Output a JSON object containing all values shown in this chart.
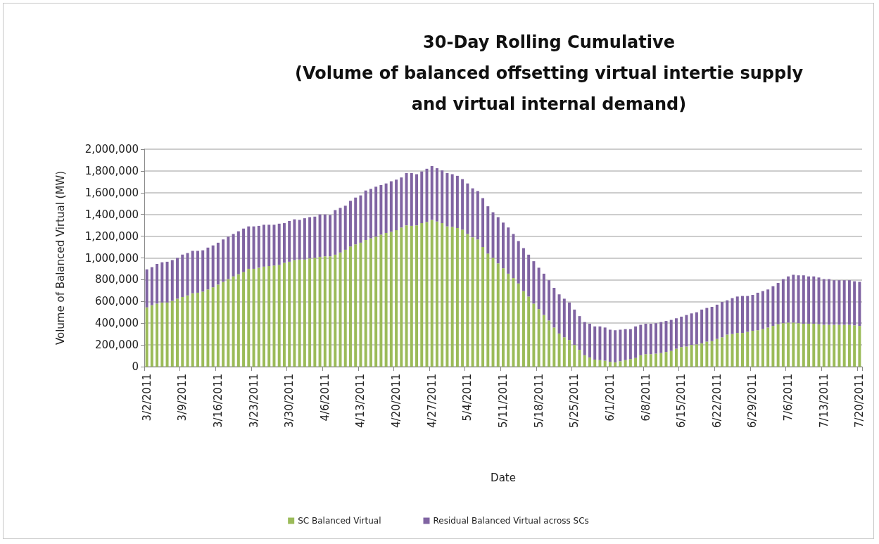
{
  "chart_data": {
    "type": "bar",
    "stacked": true,
    "title": "30-Day Rolling Cumulative\n(Volume of balanced offsetting virtual intertie supply\nand virtual internal demand)",
    "xlabel": "Date",
    "ylabel": "Volume of Balanced Virtual (MW)",
    "categories": [
      "3/2/2011",
      null,
      null,
      null,
      null,
      null,
      null,
      "3/9/2011",
      null,
      null,
      null,
      null,
      null,
      null,
      "3/16/2011",
      null,
      null,
      null,
      null,
      null,
      null,
      "3/23/2011",
      null,
      null,
      null,
      null,
      null,
      null,
      "3/30/2011",
      null,
      null,
      null,
      null,
      null,
      null,
      "4/6/2011",
      null,
      null,
      null,
      null,
      null,
      null,
      "4/13/2011",
      null,
      null,
      null,
      null,
      null,
      null,
      "4/20/2011",
      null,
      null,
      null,
      null,
      null,
      null,
      "4/27/2011",
      null,
      null,
      null,
      null,
      null,
      null,
      "5/4/2011",
      null,
      null,
      null,
      null,
      null,
      null,
      "5/11/2011",
      null,
      null,
      null,
      null,
      null,
      null,
      "5/18/2011",
      null,
      null,
      null,
      null,
      null,
      null,
      "5/25/2011",
      null,
      null,
      null,
      null,
      null,
      null,
      "6/1/2011",
      null,
      null,
      null,
      null,
      null,
      null,
      "6/8/2011",
      null,
      null,
      null,
      null,
      null,
      null,
      "6/15/2011",
      null,
      null,
      null,
      null,
      null,
      null,
      "6/22/2011",
      null,
      null,
      null,
      null,
      null,
      null,
      "6/29/2011",
      null,
      null,
      null,
      null,
      null,
      null,
      "7/6/2011",
      null,
      null,
      null,
      null,
      null,
      null,
      "7/13/2011",
      null,
      null,
      null,
      null,
      null,
      null,
      "7/20/2011"
    ],
    "series": [
      {
        "name": "SC Balanced Virtual",
        "color": "#9bbb59",
        "values": [
          545000,
          565000,
          580000,
          590000,
          590000,
          605000,
          625000,
          640000,
          655000,
          675000,
          680000,
          690000,
          710000,
          730000,
          755000,
          780000,
          805000,
          830000,
          850000,
          870000,
          900000,
          900000,
          910000,
          920000,
          925000,
          930000,
          935000,
          955000,
          965000,
          980000,
          985000,
          985000,
          995000,
          1000000,
          1010000,
          1015000,
          1015000,
          1030000,
          1050000,
          1075000,
          1105000,
          1125000,
          1140000,
          1165000,
          1180000,
          1195000,
          1215000,
          1230000,
          1240000,
          1255000,
          1280000,
          1300000,
          1295000,
          1300000,
          1320000,
          1330000,
          1350000,
          1335000,
          1320000,
          1290000,
          1285000,
          1275000,
          1260000,
          1220000,
          1190000,
          1170000,
          1100000,
          1040000,
          1000000,
          950000,
          905000,
          855000,
          815000,
          765000,
          695000,
          645000,
          580000,
          530000,
          475000,
          425000,
          360000,
          305000,
          270000,
          245000,
          200000,
          155000,
          105000,
          85000,
          65000,
          60000,
          55000,
          45000,
          40000,
          50000,
          60000,
          70000,
          80000,
          105000,
          115000,
          115000,
          120000,
          125000,
          135000,
          145000,
          165000,
          180000,
          185000,
          200000,
          205000,
          215000,
          230000,
          235000,
          255000,
          270000,
          295000,
          300000,
          310000,
          310000,
          320000,
          330000,
          335000,
          345000,
          360000,
          375000,
          390000,
          400000,
          405000,
          405000,
          400000,
          395000,
          395000,
          395000,
          390000,
          385000,
          385000,
          385000,
          385000,
          385000,
          385000,
          380000,
          375000
        ]
      },
      {
        "name": "Residual Balanced Virtual across SCs",
        "color": "#8064a2",
        "values": [
          350000,
          350000,
          365000,
          370000,
          375000,
          375000,
          375000,
          390000,
          390000,
          390000,
          385000,
          380000,
          385000,
          385000,
          385000,
          390000,
          390000,
          390000,
          395000,
          400000,
          390000,
          390000,
          385000,
          385000,
          380000,
          375000,
          380000,
          365000,
          375000,
          375000,
          365000,
          380000,
          380000,
          380000,
          390000,
          385000,
          380000,
          410000,
          410000,
          405000,
          420000,
          430000,
          435000,
          455000,
          455000,
          460000,
          455000,
          455000,
          465000,
          465000,
          460000,
          480000,
          485000,
          470000,
          475000,
          490000,
          495000,
          490000,
          485000,
          490000,
          485000,
          480000,
          465000,
          465000,
          450000,
          445000,
          450000,
          435000,
          420000,
          425000,
          420000,
          425000,
          405000,
          390000,
          395000,
          385000,
          390000,
          380000,
          380000,
          370000,
          365000,
          360000,
          355000,
          345000,
          325000,
          310000,
          305000,
          310000,
          305000,
          310000,
          305000,
          295000,
          295000,
          290000,
          285000,
          275000,
          290000,
          280000,
          280000,
          280000,
          280000,
          285000,
          285000,
          285000,
          280000,
          280000,
          290000,
          290000,
          295000,
          310000,
          310000,
          315000,
          315000,
          325000,
          315000,
          330000,
          335000,
          340000,
          330000,
          330000,
          345000,
          350000,
          350000,
          365000,
          380000,
          405000,
          425000,
          440000,
          440000,
          445000,
          435000,
          435000,
          430000,
          420000,
          420000,
          410000,
          410000,
          410000,
          410000,
          405000,
          405000
        ]
      }
    ],
    "ylim": [
      0,
      2000000
    ],
    "yticks": [
      0,
      {
        "value": 200000,
        "label": "200,000"
      },
      {
        "value": 400000,
        "label": "400,000"
      },
      {
        "value": 600000,
        "label": "600,000"
      },
      {
        "value": 800000,
        "label": "800,000"
      },
      {
        "value": 1000000,
        "label": "1,000,000"
      },
      {
        "value": 1200000,
        "label": "1,200,000"
      },
      {
        "value": 1400000,
        "label": "1,400,000"
      },
      {
        "value": 1600000,
        "label": "1,600,000"
      },
      {
        "value": 1800000,
        "label": "1,800,000"
      },
      {
        "value": 2000000,
        "label": "2,000,000"
      }
    ],
    "grid": "y",
    "legend": "bottom"
  }
}
